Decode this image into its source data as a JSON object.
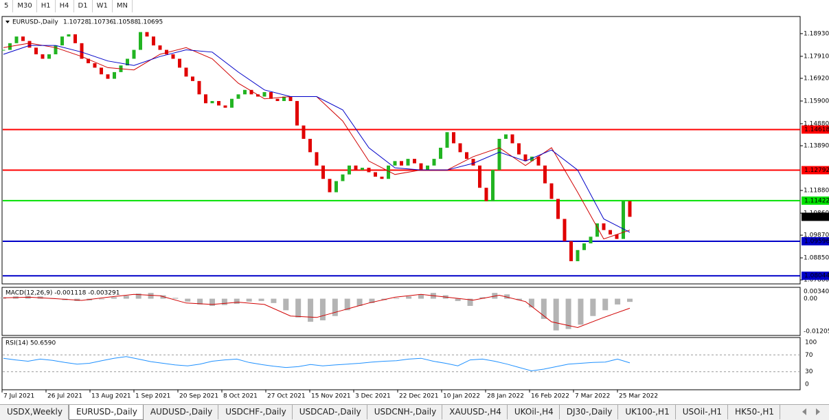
{
  "toolbar": {
    "timeframes": [
      "5",
      "M30",
      "H1",
      "H4",
      "D1",
      "W1",
      "MN"
    ]
  },
  "tabs": [
    "USDX,Weekly",
    "EURUSD-,Daily",
    "AUDUSD-,Daily",
    "USDCHF-,Daily",
    "USDCAD-,Daily",
    "USDCNH-,Daily",
    "XAUUSD-,H4",
    "UKOil-,H4",
    "DJ30-,Daily",
    "UK100-,H1",
    "USOil-,H1",
    "HK50-,H1"
  ],
  "active_tab": 1,
  "chart_data": [
    {
      "type": "candlestick",
      "title": "EURUSD-,Daily",
      "ohlc": [
        1.10728,
        1.10736,
        1.10588,
        1.10695
      ],
      "x_labels": [
        "7 Jul 2021",
        "26 Jul 2021",
        "13 Aug 2021",
        "1 Sep 2021",
        "20 Sep 2021",
        "8 Oct 2021",
        "27 Oct 2021",
        "15 Nov 2021",
        "3 Dec 2021",
        "22 Dec 2021",
        "10 Jan 2022",
        "28 Jan 2022",
        "16 Feb 2022",
        "7 Mar 2022",
        "25 Mar 2022"
      ],
      "close": [
        1.182,
        1.185,
        1.188,
        1.186,
        1.183,
        1.18,
        1.178,
        1.18,
        1.184,
        1.188,
        1.189,
        1.185,
        1.178,
        1.176,
        1.174,
        1.171,
        1.169,
        1.172,
        1.175,
        1.178,
        1.182,
        1.19,
        1.188,
        1.184,
        1.182,
        1.18,
        1.178,
        1.174,
        1.17,
        1.168,
        1.162,
        1.158,
        1.159,
        1.157,
        1.156,
        1.16,
        1.162,
        1.164,
        1.162,
        1.161,
        1.163,
        1.16,
        1.159,
        1.161,
        1.159,
        1.148,
        1.142,
        1.136,
        1.13,
        1.124,
        1.118,
        1.123,
        1.126,
        1.13,
        1.128,
        1.129,
        1.127,
        1.125,
        1.124,
        1.13,
        1.132,
        1.13,
        1.133,
        1.131,
        1.128,
        1.13,
        1.133,
        1.138,
        1.145,
        1.14,
        1.136,
        1.133,
        1.13,
        1.12,
        1.114,
        1.128,
        1.142,
        1.144,
        1.14,
        1.135,
        1.132,
        1.134,
        1.13,
        1.122,
        1.115,
        1.106,
        1.096,
        1.087,
        1.092,
        1.095,
        1.098,
        1.104,
        1.101,
        1.099,
        1.097,
        1.114,
        1.10695
      ],
      "series": [
        {
          "color": "#d00000",
          "values": [
            1.183,
            1.185,
            1.183,
            1.179,
            1.174,
            1.173,
            1.18,
            1.183,
            1.178,
            1.167,
            1.16,
            1.161,
            1.161,
            1.15,
            1.132,
            1.126,
            1.128,
            1.128,
            1.134,
            1.138,
            1.13,
            1.138,
            1.118,
            1.097,
            1.101
          ]
        },
        {
          "color": "#0000c8",
          "values": [
            1.18,
            1.184,
            1.184,
            1.181,
            1.177,
            1.175,
            1.179,
            1.182,
            1.181,
            1.172,
            1.164,
            1.161,
            1.161,
            1.155,
            1.138,
            1.129,
            1.128,
            1.128,
            1.131,
            1.136,
            1.132,
            1.137,
            1.128,
            1.106,
            1.1
          ]
        }
      ],
      "up_color": "#22b422",
      "down_color": "#e00000",
      "ylim": [
        1.0771,
        1.197
      ],
      "yticks": [
        {
          "value": 1.1893,
          "label": "1.18930"
        },
        {
          "value": 1.1791,
          "label": "1.17910"
        },
        {
          "value": 1.1692,
          "label": "1.16920"
        },
        {
          "value": 1.159,
          "label": "1.15900"
        },
        {
          "value": 1.1488,
          "label": "1.14880"
        },
        {
          "value": 1.1389,
          "label": "1.13890"
        },
        {
          "value": 1.1188,
          "label": "1.11880"
        },
        {
          "value": 1.1086,
          "label": "1.10860"
        },
        {
          "value": 1.0987,
          "label": "1.09870"
        },
        {
          "value": 1.0885,
          "label": "1.08850"
        },
        {
          "value": 1.0786,
          "label": "1.07860"
        }
      ],
      "levels": [
        {
          "value": 1.14618,
          "label": "1.14618",
          "color": "#ff0000"
        },
        {
          "value": 1.12792,
          "label": "1.12792",
          "color": "#ff0000"
        },
        {
          "value": 1.11422,
          "label": "1.11422",
          "color": "#00e000"
        },
        {
          "value": 1.09596,
          "label": "1.09596",
          "color": "#0000c8"
        },
        {
          "value": 1.08044,
          "label": "1.08044",
          "color": "#0000c8"
        }
      ],
      "current": {
        "value": 1.10695,
        "label": "1.10695",
        "color": "#000000"
      }
    },
    {
      "type": "macd",
      "title": "MACD(12,26,9) -0.001118 -0.003291",
      "histogram": [
        0.0005,
        0.0008,
        0.001,
        0.0008,
        0.0002,
        -0.0005,
        -0.0008,
        -0.0006,
        -0.0002,
        0.0005,
        0.001,
        0.0018,
        0.002,
        0.0012,
        0.0003,
        -0.001,
        -0.002,
        -0.0025,
        -0.0022,
        -0.0018,
        -0.001,
        -0.0008,
        -0.0015,
        -0.004,
        -0.0065,
        -0.008,
        -0.0075,
        -0.006,
        -0.004,
        -0.0025,
        -0.0015,
        -0.0005,
        0.0002,
        0.0008,
        0.0015,
        0.002,
        0.0012,
        -0.0008,
        -0.0025,
        0.0005,
        0.002,
        0.0015,
        -0.0005,
        -0.003,
        -0.007,
        -0.011,
        -0.0105,
        -0.009,
        -0.006,
        -0.004,
        -0.002,
        -0.0011
      ],
      "hist_color": "#b4b4b4",
      "signal": {
        "color": "#d00000",
        "values": [
          0.0003,
          0.0005,
          0.0,
          -0.0006,
          0.0005,
          0.0015,
          0.001,
          -0.0015,
          -0.002,
          -0.0012,
          -0.002,
          -0.006,
          -0.0065,
          -0.004,
          -0.0015,
          0.0005,
          0.0015,
          0.0005,
          -0.0005,
          0.0012,
          -0.001,
          -0.008,
          -0.01,
          -0.0065,
          -0.0033
        ]
      },
      "ylim": [
        -0.0125,
        0.0037
      ],
      "yticks": [
        0.003408,
        {
          "value": 0,
          "label": "0.00"
        },
        -0.012051
      ]
    },
    {
      "type": "rsi",
      "title": "RSI(14) 50.6590",
      "values": [
        62,
        58,
        55,
        60,
        57,
        52,
        48,
        50,
        56,
        62,
        66,
        60,
        54,
        50,
        46,
        44,
        48,
        55,
        58,
        60,
        52,
        47,
        43,
        40,
        42,
        47,
        44,
        46,
        48,
        50,
        53,
        55,
        56,
        60,
        62,
        55,
        50,
        44,
        58,
        60,
        55,
        48,
        40,
        32,
        36,
        42,
        48,
        50,
        52,
        53,
        60,
        51
      ],
      "color": "#1e90ff",
      "levels": [
        70,
        30
      ],
      "ylim": [
        0,
        100
      ],
      "yticks": [
        100,
        70,
        30,
        0
      ]
    }
  ]
}
